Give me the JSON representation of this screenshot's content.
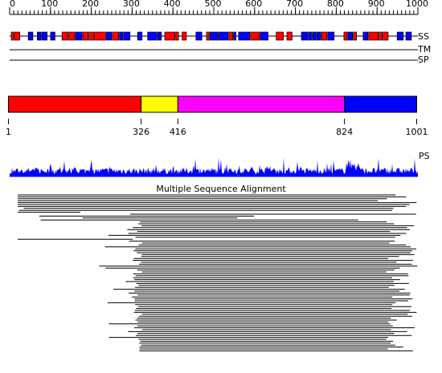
{
  "ruler": {
    "range": [
      0,
      1000
    ],
    "ticks": [
      0,
      100,
      200,
      300,
      400,
      500,
      600,
      700,
      800,
      900,
      1000
    ]
  },
  "tracks": {
    "ss": "SS",
    "tm": "TM",
    "sp": "SP",
    "ps": "PS"
  },
  "domains": {
    "boundaries": [
      1,
      326,
      416,
      824,
      1001
    ],
    "colors": [
      "#ff0000",
      "#ffff00",
      "#ff00ff",
      "#0000ff"
    ]
  },
  "alignment": {
    "title": "Multiple Sequence Alignment"
  }
}
